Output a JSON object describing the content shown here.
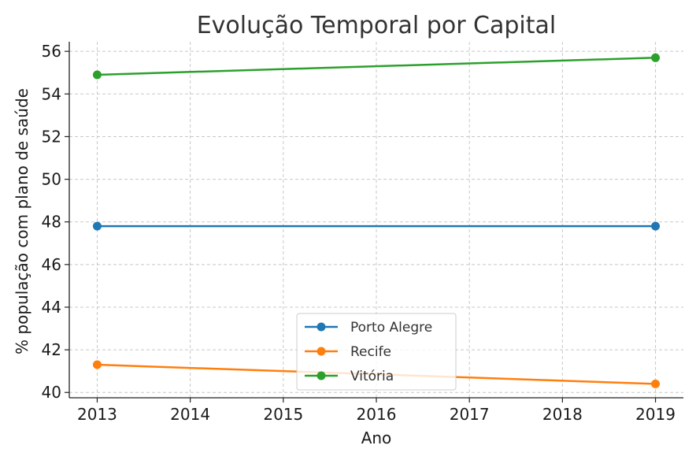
{
  "chart_data": {
    "type": "line",
    "title": "Evolução Temporal por Capital",
    "xlabel": "Ano",
    "ylabel": "% população com plano de saúde",
    "x_ticks": [
      "2013",
      "2014",
      "2015",
      "2016",
      "2017",
      "2018",
      "2019"
    ],
    "y_ticks": [
      "40",
      "42",
      "44",
      "46",
      "48",
      "50",
      "52",
      "54",
      "56"
    ],
    "xlim": [
      2012.7,
      2019.3
    ],
    "ylim": [
      39.75,
      56.45
    ],
    "grid": true,
    "legend_position": "bottom-center",
    "series": [
      {
        "name": "Porto Alegre",
        "color": "#1f77b4",
        "x": [
          2013,
          2019
        ],
        "y": [
          47.8,
          47.8
        ]
      },
      {
        "name": "Recife",
        "color": "#ff7f0e",
        "x": [
          2013,
          2019
        ],
        "y": [
          41.3,
          40.4
        ]
      },
      {
        "name": "Vitória",
        "color": "#2ca02c",
        "x": [
          2013,
          2019
        ],
        "y": [
          54.9,
          55.7
        ]
      }
    ]
  }
}
